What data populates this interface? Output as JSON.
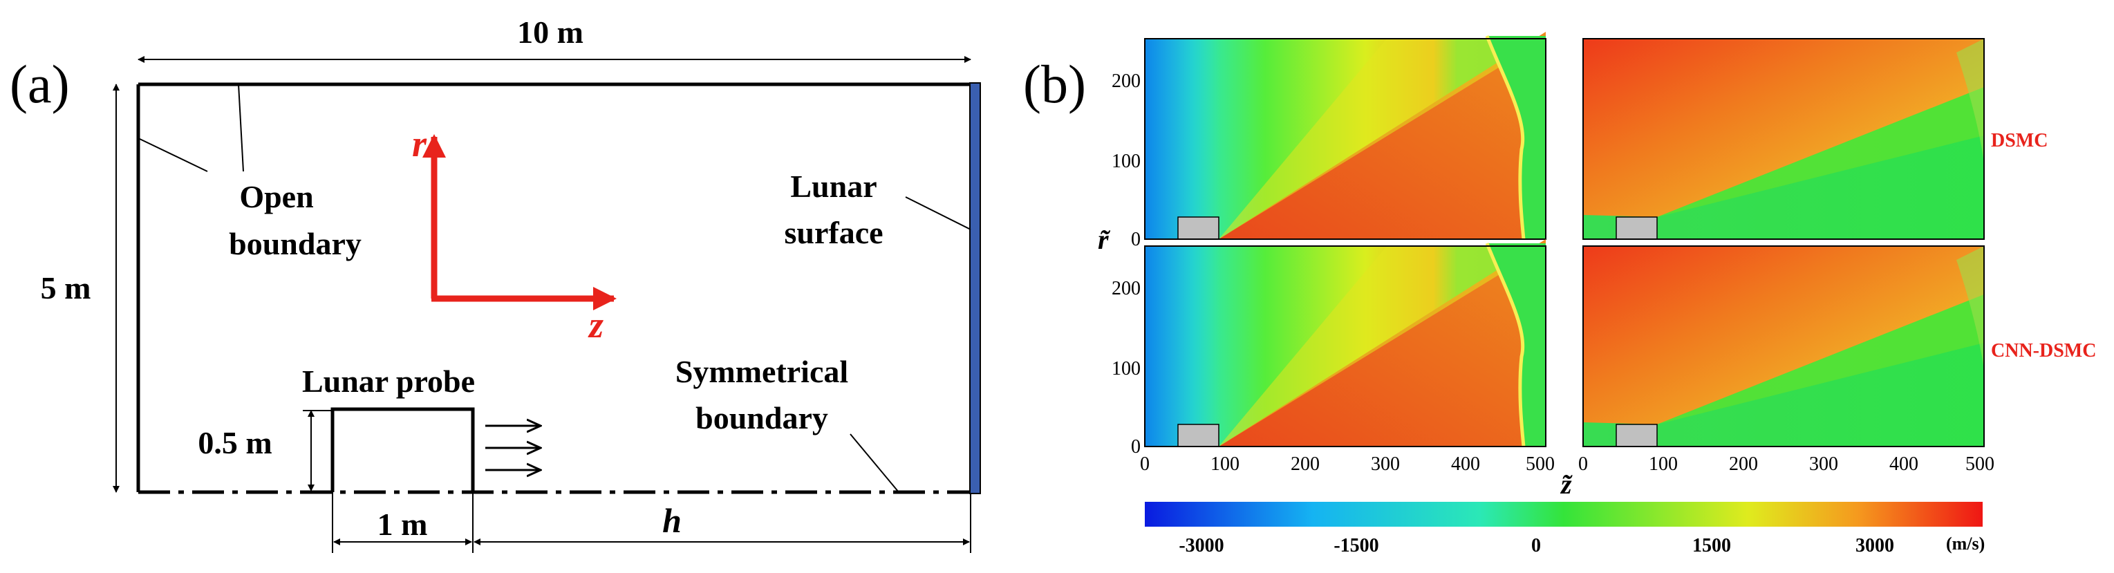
{
  "panel_a": {
    "label": "(a)",
    "width_dim": "10 m",
    "height_dim": "5 m",
    "probe_height_dim": "0.5 m",
    "probe_width_dim": "1 m",
    "h_dim": "h",
    "open_boundary": [
      "Open",
      "boundary"
    ],
    "lunar_surface": [
      "Lunar",
      "surface"
    ],
    "lunar_probe": "Lunar probe",
    "symmetrical_boundary": [
      "Symmetrical",
      "boundary"
    ],
    "axis_r": "r",
    "axis_z": "z",
    "colors": {
      "axis": "#e8231c",
      "surface": "#3a5fb0",
      "line": "#000000"
    }
  },
  "panel_b": {
    "label": "(b)",
    "row_labels": [
      "DSMC",
      "CNN-DSMC"
    ],
    "y_axis_label": "r̃",
    "x_axis_label": "z̃",
    "y_ticks": [
      "0",
      "100",
      "200"
    ],
    "x_ticks": [
      "0",
      "100",
      "200",
      "300",
      "400",
      "500"
    ],
    "colorbar": {
      "ticks": [
        "-3000",
        "-1500",
        "0",
        "1500",
        "3000"
      ],
      "unit": "(m/s)"
    },
    "colors": {
      "row_label": "#e8231c",
      "probe": "#c0c0c0"
    }
  }
}
